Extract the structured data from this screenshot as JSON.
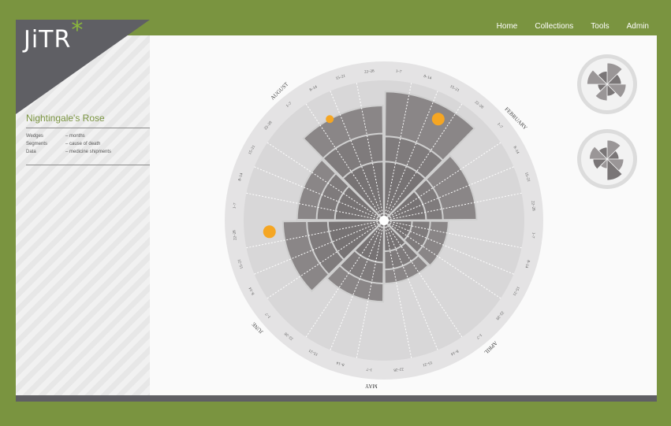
{
  "logo": {
    "text": "JiTR",
    "star": "*"
  },
  "nav": {
    "items": [
      "Home",
      "Collections",
      "Tools",
      "Admin"
    ]
  },
  "sidebar": {
    "title": "Nightingale's Rose",
    "legend": [
      {
        "key": "Wedges",
        "value": "– months"
      },
      {
        "key": "Segments",
        "value": "– cause of death"
      },
      {
        "key": "Data",
        "value": "– medicine shipments"
      }
    ]
  },
  "colors": {
    "frame_green": "#7a9440",
    "accent": "#f5a623",
    "logo_star": "#8ab73c",
    "dark_gray": "#5f5f64",
    "wedge": "#8a8687",
    "ring": "#e4e3e4"
  },
  "chart_data": {
    "type": "polar-area",
    "months": [
      "JANUARY",
      "FEBRUARY",
      "MARCH",
      "APRIL",
      "MAY",
      "JUNE",
      "JULY",
      "AUGUST"
    ],
    "week_labels": [
      "1–7",
      "8–14",
      "15–21",
      "22–28"
    ],
    "months_wedges": [
      {
        "month": "JANUARY",
        "outer": 0.92,
        "inner": [
          0.6,
          0.42
        ]
      },
      {
        "month": "FEBRUARY",
        "outer": 0.66,
        "inner": [
          0.42,
          0.3
        ]
      },
      {
        "month": "MARCH",
        "outer": 0.46,
        "inner": [
          0.33,
          0.2
        ]
      },
      {
        "month": "APRIL",
        "outer": 0.45,
        "inner": [
          0.35,
          0.22
        ]
      },
      {
        "month": "MAY",
        "outer": 0.58,
        "inner": [
          0.45,
          0.3
        ]
      },
      {
        "month": "JUNE",
        "outer": 0.72,
        "inner": [
          0.55,
          0.4
        ]
      },
      {
        "month": "JULY",
        "outer": 0.62,
        "inner": [
          0.48,
          0.35
        ]
      },
      {
        "month": "AUGUST",
        "outer": 0.82,
        "inner": [
          0.62,
          0.42
        ]
      }
    ],
    "shipments": [
      {
        "month": "JANUARY",
        "week": "15–21",
        "size": "large"
      },
      {
        "month": "AUGUST",
        "week": "8–14",
        "size": "small"
      },
      {
        "month": "JUNE",
        "week": "22–30",
        "size": "large"
      }
    ]
  },
  "mini_charts": [
    {
      "name": "rose-thumbnail-1"
    },
    {
      "name": "rose-thumbnail-2"
    }
  ]
}
